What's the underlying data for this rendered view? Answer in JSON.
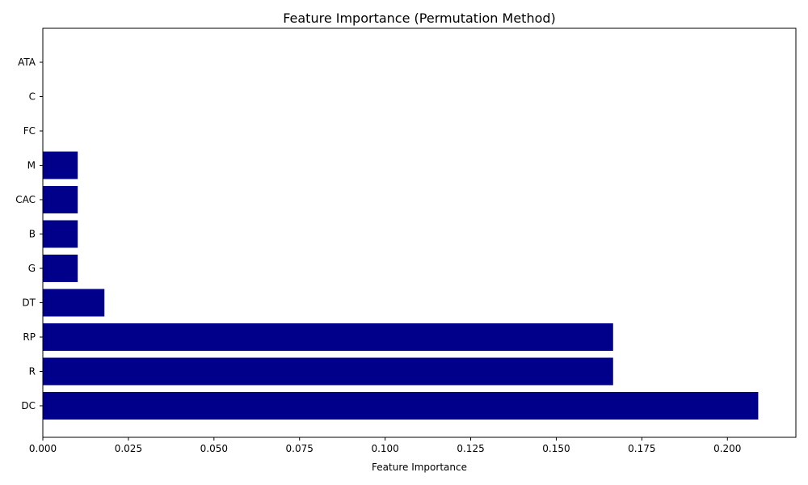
{
  "chart_data": {
    "type": "bar",
    "orientation": "horizontal",
    "title": "Feature Importance (Permutation Method)",
    "xlabel": "Feature Importance",
    "ylabel": "",
    "categories": [
      "DC",
      "R",
      "RP",
      "DT",
      "G",
      "B",
      "CAC",
      "M",
      "FC",
      "C",
      "ATA"
    ],
    "values": [
      0.209,
      0.1666,
      0.1666,
      0.018,
      0.0102,
      0.0102,
      0.0102,
      0.0102,
      0.0,
      0.0,
      0.0
    ],
    "xlim": [
      0,
      0.22
    ],
    "xticks": [
      "0.000",
      "0.025",
      "0.050",
      "0.075",
      "0.100",
      "0.125",
      "0.150",
      "0.175",
      "0.200"
    ],
    "bar_color": "#00008b",
    "grid": false,
    "legend": "none"
  }
}
